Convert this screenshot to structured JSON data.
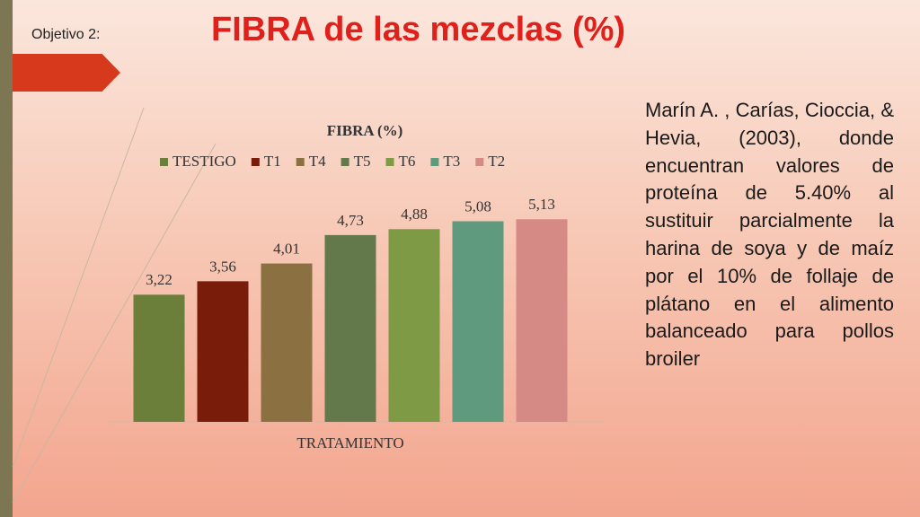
{
  "header": {
    "label": "Objetivo 2:",
    "title": "FIBRA de las mezclas (%)"
  },
  "note": "Marín A. , Carías, Cioccia, & Hevia, (2003), donde encuentran valores de proteína de 5.40% al sustituir parcialmente la harina de soya y de maíz por el 10% de follaje de plátano en el alimento balanceado para pollos broiler",
  "chart_data": {
    "type": "bar",
    "title": "FIBRA (%)",
    "categories": [
      "TRATAMIENTO"
    ],
    "series": [
      {
        "name": "TESTIGO",
        "color": "#6b7f3a",
        "values": [
          3.22
        ],
        "value_labels": [
          "3,22"
        ]
      },
      {
        "name": "T1",
        "color": "#7a1c0a",
        "values": [
          3.56
        ],
        "value_labels": [
          "3,56"
        ]
      },
      {
        "name": "T4",
        "color": "#8b7042",
        "values": [
          4.01
        ],
        "value_labels": [
          "4,01"
        ]
      },
      {
        "name": "T5",
        "color": "#63784b",
        "values": [
          4.73
        ],
        "value_labels": [
          "4,73"
        ]
      },
      {
        "name": "T6",
        "color": "#7f9a45",
        "values": [
          4.88
        ],
        "value_labels": [
          "4,88"
        ]
      },
      {
        "name": "T3",
        "color": "#5f9a7e",
        "values": [
          5.08
        ],
        "value_labels": [
          "5,08"
        ]
      },
      {
        "name": "T2",
        "color": "#d68a86",
        "values": [
          5.13
        ],
        "value_labels": [
          "5,13"
        ]
      }
    ]
  }
}
